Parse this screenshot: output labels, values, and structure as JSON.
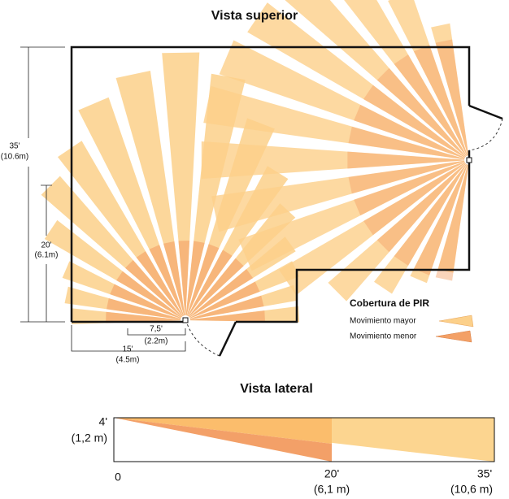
{
  "top_view": {
    "title": "Vista superior",
    "dimensions": [
      {
        "label": "35'",
        "metric": "(10.6m)"
      },
      {
        "label": "20'",
        "metric": "(6.1m)"
      },
      {
        "label": "7,5'",
        "metric": "(2.2m)"
      },
      {
        "label": "15'",
        "metric": "(4.5m)"
      }
    ]
  },
  "legend": {
    "title": "Cobertura de PIR",
    "items": [
      "Movimiento mayor",
      "Movimiento menor"
    ]
  },
  "side_view": {
    "title": "Vista lateral",
    "height": {
      "label": "4'",
      "metric": "(1,2 m)"
    },
    "distances": [
      {
        "label": "0"
      },
      {
        "label": "20'",
        "metric": "(6,1 m)"
      },
      {
        "label": "35'",
        "metric": "(10,6 m)"
      }
    ]
  }
}
